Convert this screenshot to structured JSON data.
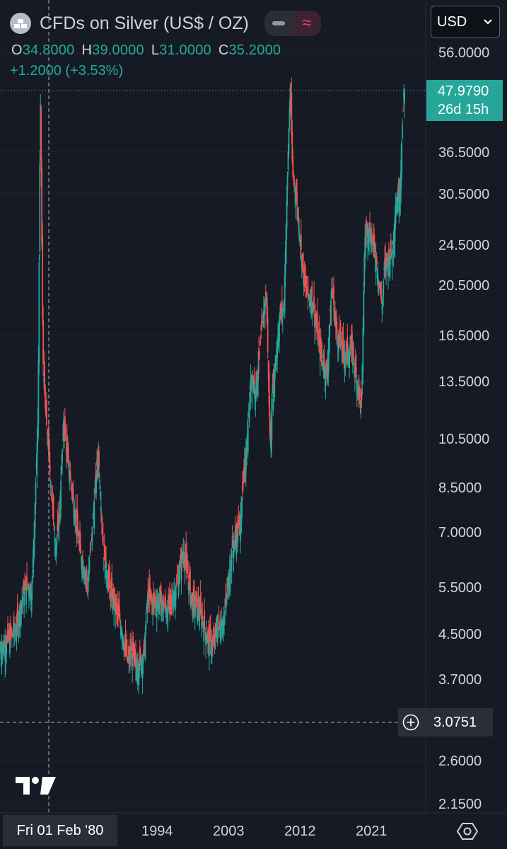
{
  "header": {
    "symbol_title": "CFDs on Silver (US$ / OZ)",
    "logo_icon": "silver-bars-icon",
    "toggle_icons": [
      "line-icon",
      "wave-icon"
    ],
    "currency": "USD",
    "currency_icon": "chevron-down-icon"
  },
  "ohlc": {
    "open_label": "O",
    "open": "34.8000",
    "high_label": "H",
    "high": "39.0000",
    "low_label": "L",
    "low": "31.0000",
    "close_label": "C",
    "close": "35.2000",
    "change": "+1.2000 (+3.53%)"
  },
  "price_axis": {
    "labels": [
      "56.0000",
      "36.5000",
      "30.5000",
      "24.5000",
      "20.5000",
      "16.5000",
      "13.5000",
      "10.5000",
      "8.5000",
      "7.0000",
      "5.5000",
      "4.5000",
      "3.7000",
      "2.6000",
      "2.1500"
    ],
    "last_price": "47.9790",
    "countdown": "26d 15h",
    "crosshair_price": "3.0751"
  },
  "time_axis": {
    "labels": [
      "1994",
      "2003",
      "2012",
      "2021"
    ],
    "crosshair_time": "Fri 01 Feb '80"
  },
  "colors": {
    "up": "#26a69a",
    "down": "#ef5350",
    "background": "#161a25",
    "text": "#d1d4dc"
  },
  "chart_data": {
    "type": "line",
    "scale": "log",
    "ylim": [
      2.0,
      60.0
    ],
    "xlim": [
      1975.0,
      2028.0
    ],
    "series": [
      {
        "x": [
          1975.0,
          1976.0,
          1977.0,
          1978.0,
          1978.5,
          1979.0,
          1979.4,
          1979.8,
          1980.08,
          1980.2,
          1980.4,
          1980.7,
          1981.0,
          1981.5,
          1982.0,
          1982.5,
          1983.0,
          1983.5,
          1984.0,
          1985.0,
          1986.0,
          1987.3,
          1988.0,
          1989.0,
          1990.0,
          1991.0,
          1991.5,
          1992.0,
          1993.0,
          1993.5,
          1994.0,
          1995.0,
          1996.0,
          1997.0,
          1998.0,
          1999.0,
          2000.0,
          2001.0,
          2001.8,
          2002.0,
          2003.0,
          2004.0,
          2005.0,
          2006.0,
          2006.4,
          2007.0,
          2008.0,
          2008.3,
          2008.8,
          2009.0,
          2010.0,
          2010.5,
          2011.0,
          2011.3,
          2011.6,
          2012.0,
          2013.0,
          2013.5,
          2014.0,
          2015.0,
          2015.9,
          2016.0,
          2016.5,
          2017.0,
          2018.0,
          2019.0,
          2020.2,
          2020.6,
          2021.0,
          2021.5,
          2022.0,
          2022.8,
          2023.0,
          2023.5,
          2024.0,
          2024.5,
          2025.0,
          2025.5
        ],
        "y": [
          4.2,
          4.4,
          4.6,
          5.4,
          5.6,
          5.4,
          7.8,
          11.8,
          48.0,
          32.0,
          15.0,
          12.0,
          10.5,
          8.2,
          6.5,
          7.8,
          11.5,
          9.5,
          8.5,
          6.5,
          5.6,
          10.0,
          6.3,
          5.3,
          4.8,
          4.0,
          4.2,
          3.9,
          4.1,
          5.4,
          5.2,
          5.2,
          5.0,
          5.5,
          6.5,
          5.2,
          5.0,
          4.4,
          4.3,
          4.6,
          4.8,
          6.5,
          7.3,
          11.0,
          14.0,
          13.0,
          18.5,
          20.0,
          10.0,
          12.5,
          18.0,
          18.5,
          35.0,
          48.5,
          33.0,
          30.5,
          21.0,
          19.5,
          19.5,
          15.5,
          13.8,
          15.0,
          20.5,
          17.0,
          15.2,
          15.5,
          12.0,
          25.0,
          26.5,
          25.0,
          23.0,
          18.5,
          22.0,
          23.0,
          23.5,
          29.0,
          31.0,
          47.98
        ]
      }
    ]
  }
}
